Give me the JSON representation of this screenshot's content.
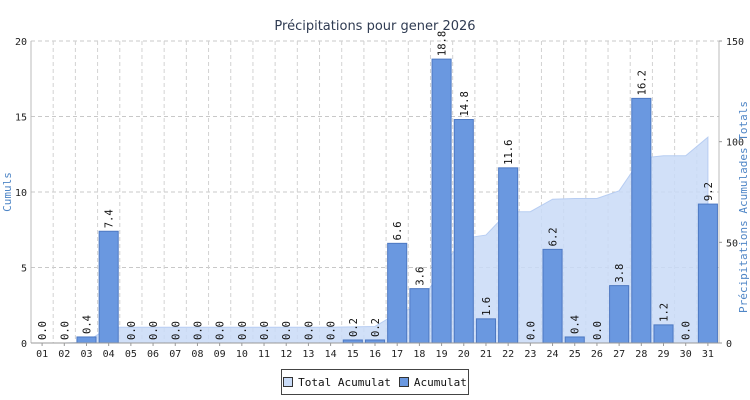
{
  "chart_data": {
    "type": "bar",
    "title": "Précipitations pour gener 2026",
    "ylabel": "Cumuls",
    "y2label": "Précipitations Acumulades Totals",
    "ylim": [
      0,
      20
    ],
    "y2lim": [
      0,
      150
    ],
    "yticks": [
      "0",
      "5",
      "10",
      "15",
      "20"
    ],
    "y2ticks": [
      "0",
      "50",
      "100",
      "150"
    ],
    "grid": true,
    "legend_placement": "bottom-center",
    "categories": [
      "01",
      "02",
      "03",
      "04",
      "05",
      "06",
      "07",
      "08",
      "09",
      "10",
      "11",
      "12",
      "13",
      "14",
      "15",
      "16",
      "17",
      "18",
      "19",
      "20",
      "21",
      "22",
      "23",
      "24",
      "25",
      "26",
      "27",
      "28",
      "29",
      "30",
      "31"
    ],
    "series": [
      {
        "name": "Acumulat",
        "type": "bar",
        "axis": "left",
        "color": "#6a98e0",
        "values": [
          0.0,
          0.0,
          0.4,
          7.4,
          0.0,
          0.0,
          0.0,
          0.0,
          0.0,
          0.0,
          0.0,
          0.0,
          0.0,
          0.0,
          0.2,
          0.2,
          6.6,
          3.6,
          18.8,
          14.8,
          1.6,
          11.6,
          0.0,
          6.2,
          0.4,
          0.0,
          3.8,
          16.2,
          1.2,
          0.0,
          9.2
        ],
        "labels": [
          "0.0",
          "0.0",
          "0.4",
          "7.4",
          "0.0",
          "0.0",
          "0.0",
          "0.0",
          "0.0",
          "0.0",
          "0.0",
          "0.0",
          "0.0",
          "0.0",
          "0.2",
          "0.2",
          "6.6",
          "3.6",
          "18.8",
          "14.8",
          "1.6",
          "11.6",
          "0.0",
          "6.2",
          "0.4",
          "0.0",
          "3.8",
          "16.2",
          "1.2",
          "0.0",
          "9.2"
        ]
      },
      {
        "name": "Total Acumulat",
        "type": "area",
        "axis": "right",
        "color": "#c9dbf7",
        "values": [
          0.0,
          0.0,
          0.4,
          7.8,
          7.8,
          7.8,
          7.8,
          7.8,
          7.8,
          7.8,
          7.8,
          7.8,
          7.8,
          7.8,
          8.0,
          8.2,
          14.8,
          18.4,
          37.2,
          52.0,
          53.6,
          65.2,
          65.2,
          71.4,
          71.8,
          71.8,
          75.6,
          91.8,
          93.0,
          93.0,
          102.2
        ]
      }
    ]
  }
}
